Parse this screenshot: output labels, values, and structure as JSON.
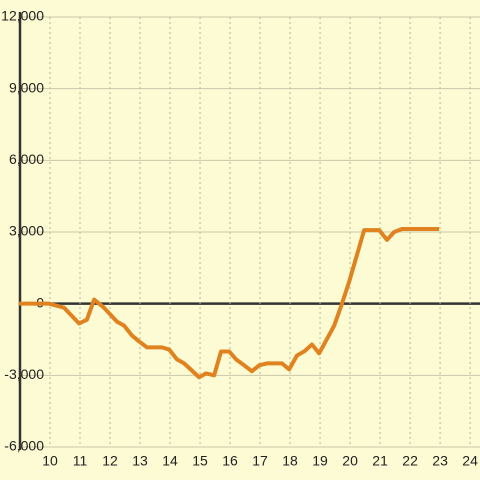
{
  "chart_data": {
    "type": "line",
    "x": [
      8.97,
      9.97,
      10.47,
      10.97,
      11.23,
      11.47,
      11.8,
      12.23,
      12.47,
      12.73,
      12.97,
      13.23,
      13.73,
      13.97,
      14.23,
      14.47,
      14.97,
      15.2,
      15.47,
      15.7,
      15.97,
      16.2,
      16.47,
      16.73,
      16.97,
      17.23,
      17.73,
      17.97,
      18.23,
      18.47,
      18.73,
      18.97,
      19.47,
      19.73,
      19.97,
      20.47,
      20.97,
      21.23,
      21.47,
      21.73,
      22.97
    ],
    "series": [
      {
        "color": "#e0821f",
        "values": [
          0,
          0,
          -170,
          -830,
          -670,
          170,
          -170,
          -750,
          -920,
          -1330,
          -1580,
          -1830,
          -1830,
          -1920,
          -2330,
          -2500,
          -3080,
          -2920,
          -3000,
          -2000,
          -2000,
          -2330,
          -2580,
          -2830,
          -2580,
          -2500,
          -2500,
          -2750,
          -2170,
          -2000,
          -1710,
          -2080,
          -920,
          0,
          920,
          3080,
          3080,
          2670,
          3000,
          3125,
          3125
        ]
      }
    ],
    "xlim": [
      9,
      24.33
    ],
    "xticks": [
      10,
      11,
      12,
      13,
      14,
      15,
      16,
      17,
      18,
      19,
      20,
      21,
      22,
      23,
      24
    ],
    "ylim": [
      -6000,
      12000
    ],
    "yticks": [
      {
        "value": -6000,
        "label": "-6,000"
      },
      {
        "value": -3000,
        "label": "-3,000"
      },
      0,
      {
        "value": 3000,
        "label": "3,000"
      },
      {
        "value": 6000,
        "label": "6,000"
      },
      {
        "value": 9000,
        "label": "9,000"
      },
      {
        "value": 12000,
        "label": "12,000"
      }
    ],
    "grid": true
  }
}
